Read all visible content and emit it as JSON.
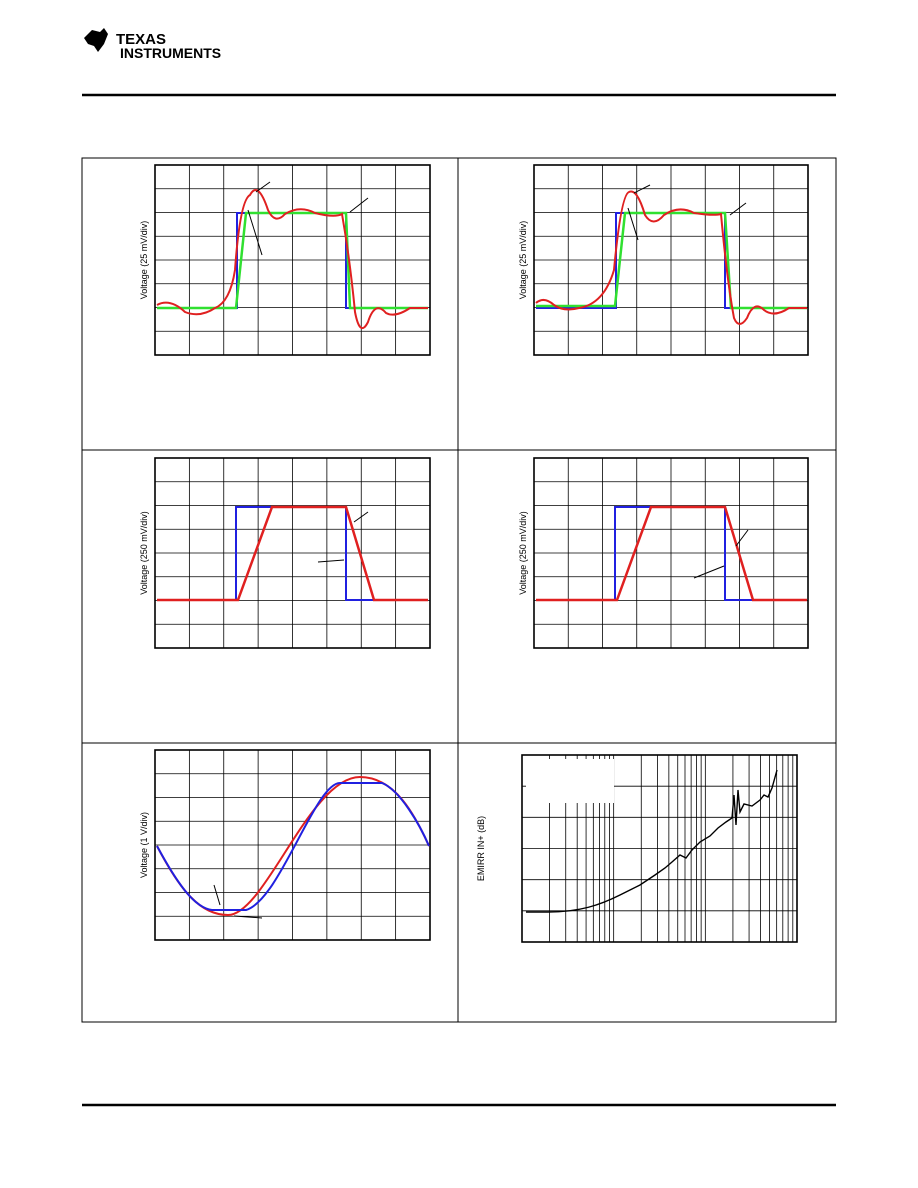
{
  "header": {
    "logo_line1": "TEXAS",
    "logo_line2": "INSTRUMENTS"
  },
  "figures": [
    {
      "y_label": "Voltage (25 mV/div)"
    },
    {
      "y_label": "Voltage (25 mV/div)"
    },
    {
      "y_label": "Voltage (250 mV/div)"
    },
    {
      "y_label": "Voltage (250 mV/div)"
    },
    {
      "y_label": "Voltage (1 V/div)"
    },
    {
      "y_label": "EMIRR IN+ (dB)"
    }
  ]
}
